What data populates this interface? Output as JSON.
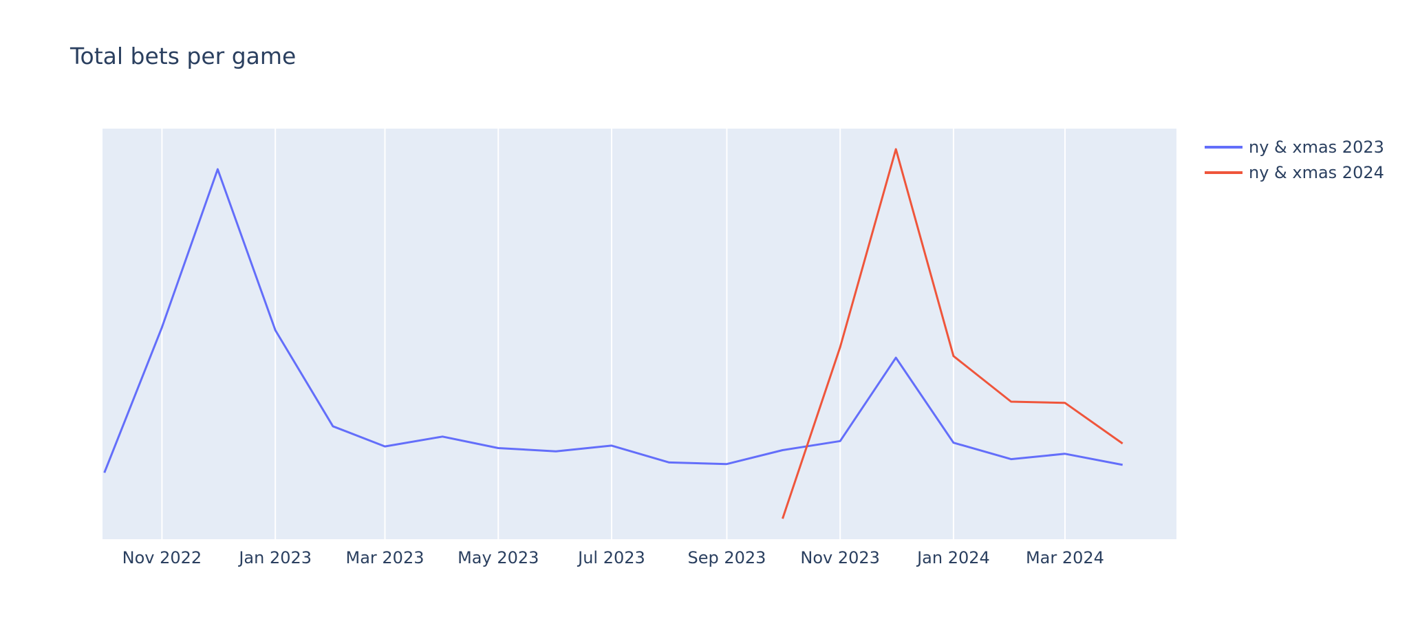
{
  "chart_data": {
    "type": "line",
    "title": "Total bets per game",
    "xlabel": "",
    "ylabel": "",
    "x_axis": {
      "type": "date",
      "range": [
        "2022-09-30",
        "2024-04-30"
      ],
      "ticks": [
        {
          "date": "2022-11-01",
          "label": "Nov 2022"
        },
        {
          "date": "2023-01-01",
          "label": "Jan 2023"
        },
        {
          "date": "2023-03-01",
          "label": "Mar 2023"
        },
        {
          "date": "2023-05-01",
          "label": "May 2023"
        },
        {
          "date": "2023-07-01",
          "label": "Jul 2023"
        },
        {
          "date": "2023-09-01",
          "label": "Sep 2023"
        },
        {
          "date": "2023-11-01",
          "label": "Nov 2023"
        },
        {
          "date": "2024-01-01",
          "label": "Jan 2024"
        },
        {
          "date": "2024-03-01",
          "label": "Mar 2024"
        }
      ],
      "grid": true
    },
    "y_axis": {
      "tick_labels_visible": false,
      "grid": false,
      "range": [
        0,
        100
      ]
    },
    "legend": {
      "placement": "top-right"
    },
    "series": [
      {
        "name": "ny & xmas 2023",
        "color": "#636efa",
        "x": [
          "2022-10-01",
          "2022-11-01",
          "2022-12-01",
          "2023-01-01",
          "2023-02-01",
          "2023-03-01",
          "2023-04-01",
          "2023-05-01",
          "2023-06-01",
          "2023-07-01",
          "2023-08-01",
          "2023-09-01",
          "2023-10-01",
          "2023-11-01",
          "2023-12-01",
          "2024-01-01",
          "2024-02-01",
          "2024-03-01",
          "2024-04-01"
        ],
        "y": [
          16.2,
          51.6,
          90.1,
          50.9,
          27.5,
          22.6,
          25.0,
          22.2,
          21.4,
          22.8,
          18.7,
          18.3,
          21.7,
          23.9,
          44.2,
          23.5,
          19.5,
          20.8,
          18.1
        ]
      },
      {
        "name": "ny & xmas 2024",
        "color": "#ef553b",
        "x": [
          "2023-10-01",
          "2023-11-01",
          "2023-12-01",
          "2024-01-01",
          "2024-02-01",
          "2024-03-01",
          "2024-04-01"
        ],
        "y": [
          5.0,
          46.8,
          95.0,
          44.6,
          33.5,
          33.2,
          23.3
        ]
      }
    ]
  }
}
